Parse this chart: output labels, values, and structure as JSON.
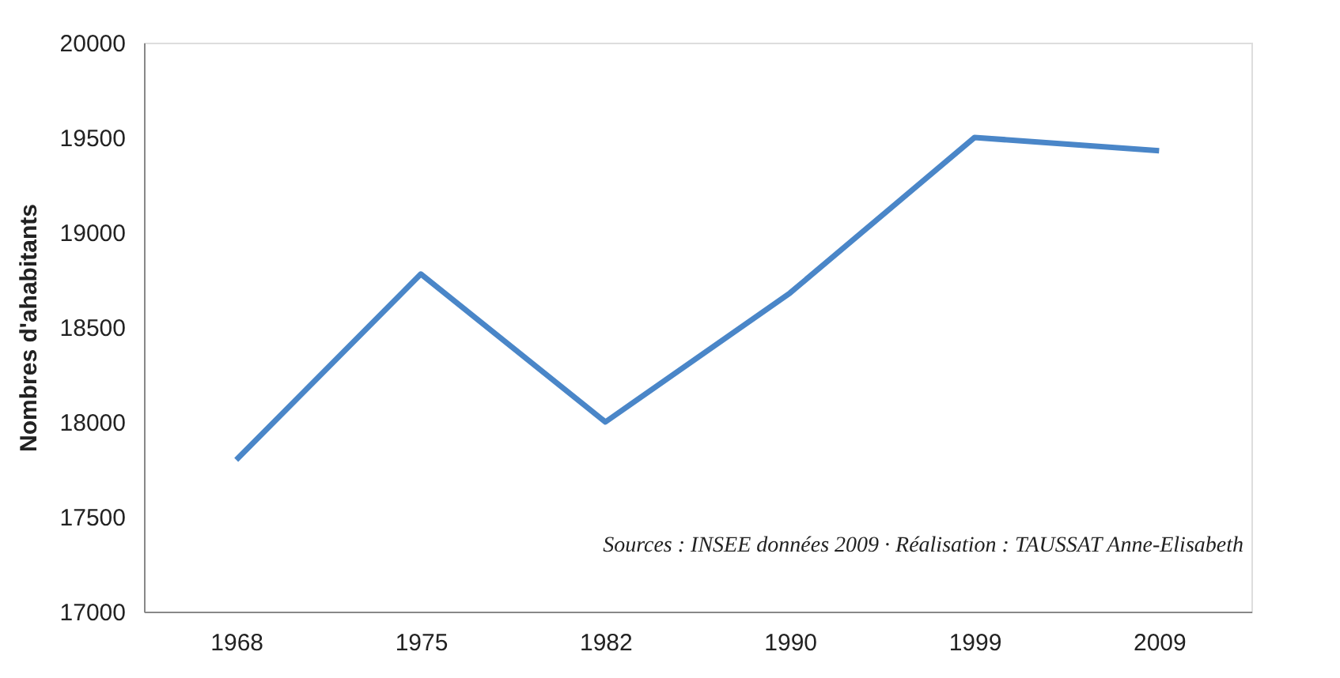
{
  "chart_data": {
    "type": "line",
    "categories": [
      "1968",
      "1975",
      "1982",
      "1990",
      "1999",
      "2009"
    ],
    "series": [
      {
        "color": "#4a86c8",
        "values": [
          17800,
          18780,
          18000,
          18680,
          19500,
          19430
        ]
      }
    ],
    "ylabel": "Nombres d'ahabitants",
    "ylim": [
      17000,
      20000
    ],
    "yticks": [
      17000,
      17500,
      18000,
      18500,
      19000,
      19500,
      20000
    ],
    "grid": false,
    "marker": "none",
    "line_style": "solid",
    "annotations": [
      "Sources : INSEE données 2009 · Réalisation : TAUSSAT Anne-Elisabeth"
    ]
  }
}
